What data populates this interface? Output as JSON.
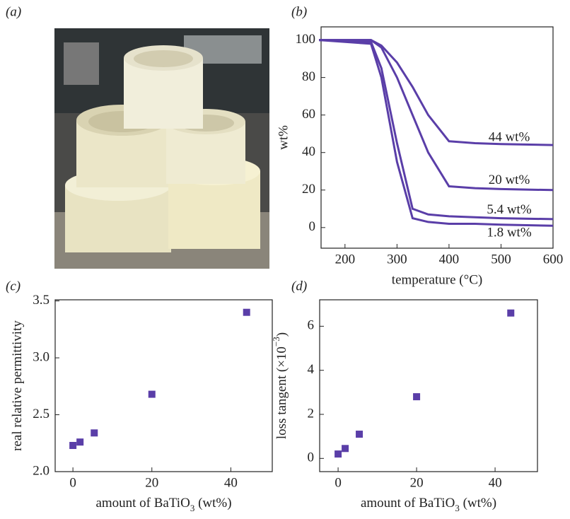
{
  "chart_data": [
    {
      "type": "image",
      "panel_label": "(a)"
    },
    {
      "type": "line",
      "panel_label": "(b)",
      "x_label": "temperature (°C)",
      "y_label": "wt%",
      "x": [
        150,
        250,
        270,
        300,
        330,
        360,
        400,
        450,
        500,
        600
      ],
      "series": [
        {
          "name": "44 wt%",
          "color": "#5a3ea8",
          "values": [
            100,
            100,
            97,
            88,
            75,
            60,
            46,
            45,
            44.5,
            44
          ]
        },
        {
          "name": "20 wt%",
          "color": "#5a3ea8",
          "values": [
            100,
            100,
            96,
            80,
            60,
            40,
            22,
            21,
            20.5,
            20
          ]
        },
        {
          "name": "5.4 wt%",
          "color": "#5a3ea8",
          "values": [
            100,
            99,
            85,
            45,
            10,
            7,
            6,
            5.5,
            5,
            4.5
          ]
        },
        {
          "name": "1.8 wt%",
          "color": "#5a3ea8",
          "values": [
            100,
            98,
            80,
            35,
            5,
            3,
            2,
            2,
            1.5,
            1
          ]
        }
      ],
      "xlim": [
        154,
        600
      ],
      "xticks": [
        200,
        300,
        400,
        500,
        600
      ],
      "ylim": [
        -11,
        107
      ],
      "yticks": [
        0,
        20,
        40,
        60,
        80,
        100
      ]
    },
    {
      "type": "scatter",
      "panel_label": "(c)",
      "x_label": [
        "amount of BaTiO",
        "3",
        " (wt%)"
      ],
      "y_label": [
        "real relative permittivity"
      ],
      "color": "#5a3ea8",
      "x": [
        0,
        1.8,
        5.4,
        20,
        44
      ],
      "values": [
        2.23,
        2.26,
        2.34,
        2.68,
        3.4
      ],
      "xlim": [
        -4.5,
        50.5
      ],
      "xticks": [
        0,
        20,
        40
      ],
      "ylim": [
        2.0,
        3.51
      ],
      "yticks": [
        {
          "value": 2,
          "label": "2.0"
        },
        2.5,
        {
          "value": 3,
          "label": "3.0"
        },
        3.5
      ]
    },
    {
      "type": "scatter",
      "panel_label": "(d)",
      "x_label": [
        "amount of BaTiO",
        "3",
        " (wt%)"
      ],
      "y_label": [
        "loss tangent (×10",
        "−3",
        ")"
      ],
      "color": "#5a3ea8",
      "x": [
        0,
        1.8,
        5.4,
        20,
        44
      ],
      "values": [
        0.2,
        0.45,
        1.1,
        2.8,
        6.6
      ],
      "xlim": [
        -4.7,
        50.8
      ],
      "xticks": [
        0,
        20,
        40
      ],
      "ylim": [
        -0.6,
        7.2
      ],
      "yticks": [
        0,
        2,
        4,
        6
      ]
    }
  ]
}
